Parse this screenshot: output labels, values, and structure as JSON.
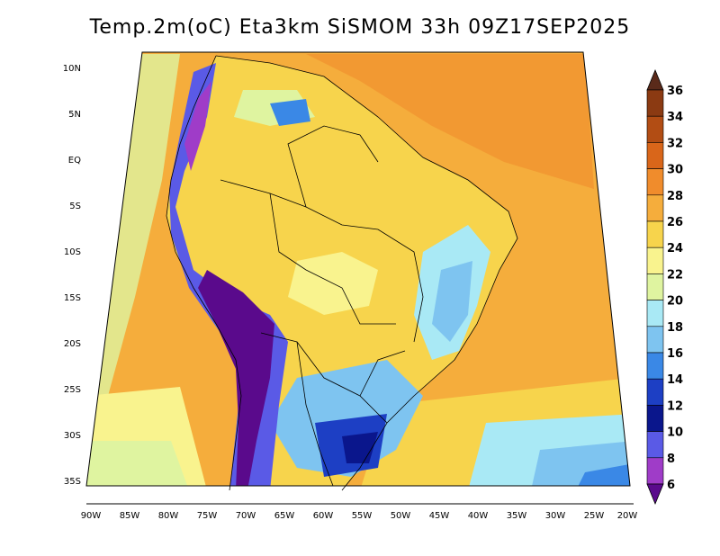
{
  "title": "Temp.2m(oC) Eta3km SiSMOM 33h 09Z17SEP2025",
  "lat_labels": [
    "10N",
    "5N",
    "EQ",
    "5S",
    "10S",
    "15S",
    "20S",
    "25S",
    "30S",
    "35S"
  ],
  "lon_labels": [
    "90W",
    "85W",
    "80W",
    "75W",
    "70W",
    "65W",
    "60W",
    "55W",
    "50W",
    "45W",
    "40W",
    "35W",
    "30W",
    "25W",
    "20W"
  ],
  "colorbar": {
    "labels": [
      "36",
      "34",
      "32",
      "30",
      "28",
      "26",
      "24",
      "22",
      "20",
      "18",
      "16",
      "14",
      "12",
      "10",
      "8",
      "6"
    ],
    "colors": [
      "#5a2a1a",
      "#8b3a12",
      "#b24d14",
      "#d9661a",
      "#f08c2c",
      "#f5ad3c",
      "#f7d44c",
      "#f9f38e",
      "#dff4a0",
      "#a9e9f5",
      "#7ec4f0",
      "#3a88e6",
      "#1d3fc4",
      "#0a168c",
      "#5a5ae6",
      "#9f3cc8",
      "#5a0a8c"
    ]
  },
  "legend_colors": {
    "ocean_warm": "#f5ad3c",
    "land_warm": "#f7d44c",
    "cool": "#a9e9f5",
    "cold": "#5a5ae6",
    "coldest": "#5a0a8c"
  }
}
